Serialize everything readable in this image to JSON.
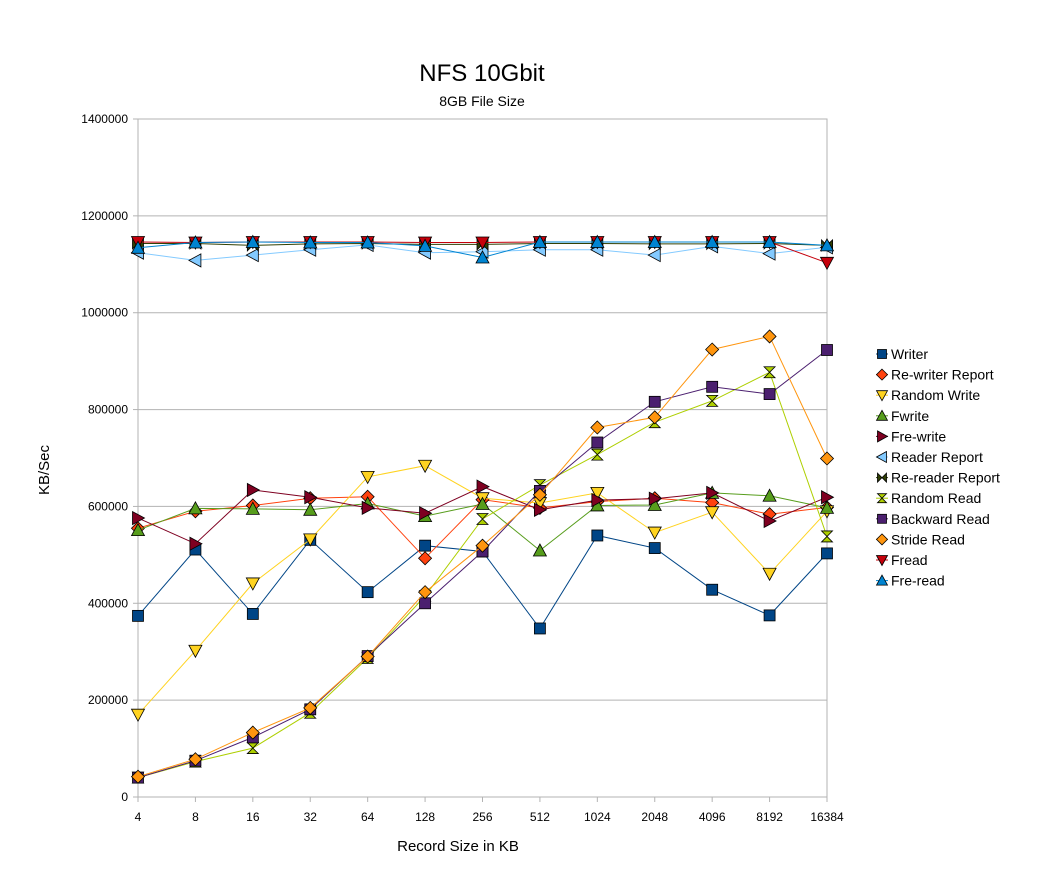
{
  "chart_data": {
    "type": "line",
    "title": "NFS 10Gbit",
    "subtitle": "8GB File Size",
    "xlabel": "Record Size in KB",
    "ylabel": "KB/Sec",
    "categories": [
      "4",
      "8",
      "16",
      "32",
      "64",
      "128",
      "256",
      "512",
      "1024",
      "2048",
      "4096",
      "8192",
      "16384"
    ],
    "ylim": [
      0,
      1400000
    ],
    "yticks": [
      0,
      200000,
      400000,
      600000,
      800000,
      1000000,
      1200000,
      1400000
    ],
    "grid": "horizontal",
    "legend_position": "right",
    "series": [
      {
        "name": "Writer",
        "color": "#004586",
        "marker": "square",
        "values": [
          374000,
          511000,
          378000,
          531000,
          423000,
          519000,
          507000,
          348000,
          540000,
          514000,
          428000,
          375000,
          503000
        ]
      },
      {
        "name": "Re-writer Report",
        "color": "#ff420e",
        "marker": "diamond",
        "values": [
          555000,
          590000,
          602000,
          617000,
          620000,
          493000,
          614000,
          597000,
          610000,
          617000,
          608000,
          584000,
          598000
        ]
      },
      {
        "name": "Random Write",
        "color": "#ffd320",
        "marker": "triangle-down",
        "values": [
          170000,
          302000,
          441000,
          532000,
          661000,
          684000,
          617000,
          607000,
          628000,
          546000,
          588000,
          461000,
          590000
        ]
      },
      {
        "name": "Fwrite",
        "color": "#579d1c",
        "marker": "triangle-up",
        "values": [
          551000,
          596000,
          595000,
          593000,
          606000,
          580000,
          605000,
          509000,
          602000,
          603000,
          628000,
          622000,
          597000
        ]
      },
      {
        "name": "Fre-write",
        "color": "#7e0021",
        "marker": "triangle-right",
        "values": [
          576000,
          523000,
          634000,
          619000,
          597000,
          586000,
          641000,
          593000,
          613000,
          616000,
          628000,
          570000,
          619000
        ]
      },
      {
        "name": "Reader Report",
        "color": "#83caff",
        "marker": "triangle-left",
        "values": [
          1124000,
          1108000,
          1119000,
          1130000,
          1140000,
          1124000,
          1126000,
          1130000,
          1130000,
          1119000,
          1137000,
          1122000,
          1135000
        ]
      },
      {
        "name": "Re-reader Report",
        "color": "#314004",
        "marker": "bowtie",
        "values": [
          1143000,
          1143000,
          1139000,
          1142000,
          1143000,
          1141000,
          1141000,
          1143000,
          1143000,
          1142000,
          1142000,
          1143000,
          1139000
        ]
      },
      {
        "name": "Random Read",
        "color": "#aecf00",
        "marker": "hourglass",
        "values": [
          40000,
          73000,
          101000,
          174000,
          287000,
          415000,
          574000,
          644000,
          707000,
          774000,
          818000,
          877000,
          538000
        ]
      },
      {
        "name": "Backward Read",
        "color": "#4b1f6f",
        "marker": "square",
        "values": [
          40000,
          75000,
          123000,
          181000,
          291000,
          400000,
          507000,
          632000,
          732000,
          816000,
          847000,
          832000,
          923000
        ]
      },
      {
        "name": "Stride Read",
        "color": "#ff950e",
        "marker": "diamond",
        "values": [
          42000,
          78000,
          133000,
          184000,
          290000,
          423000,
          519000,
          624000,
          763000,
          784000,
          924000,
          951000,
          699000
        ]
      },
      {
        "name": "Fread",
        "color": "#c5000b",
        "marker": "triangle-down",
        "values": [
          1146000,
          1145000,
          1146000,
          1146000,
          1146000,
          1145000,
          1145000,
          1146000,
          1146000,
          1146000,
          1146000,
          1146000,
          1103000
        ]
      },
      {
        "name": "Fre-read",
        "color": "#0084d1",
        "marker": "triangle-up",
        "values": [
          1134000,
          1145000,
          1146000,
          1145000,
          1145000,
          1138000,
          1114000,
          1146000,
          1146000,
          1146000,
          1146000,
          1146000,
          1139000
        ]
      }
    ]
  }
}
